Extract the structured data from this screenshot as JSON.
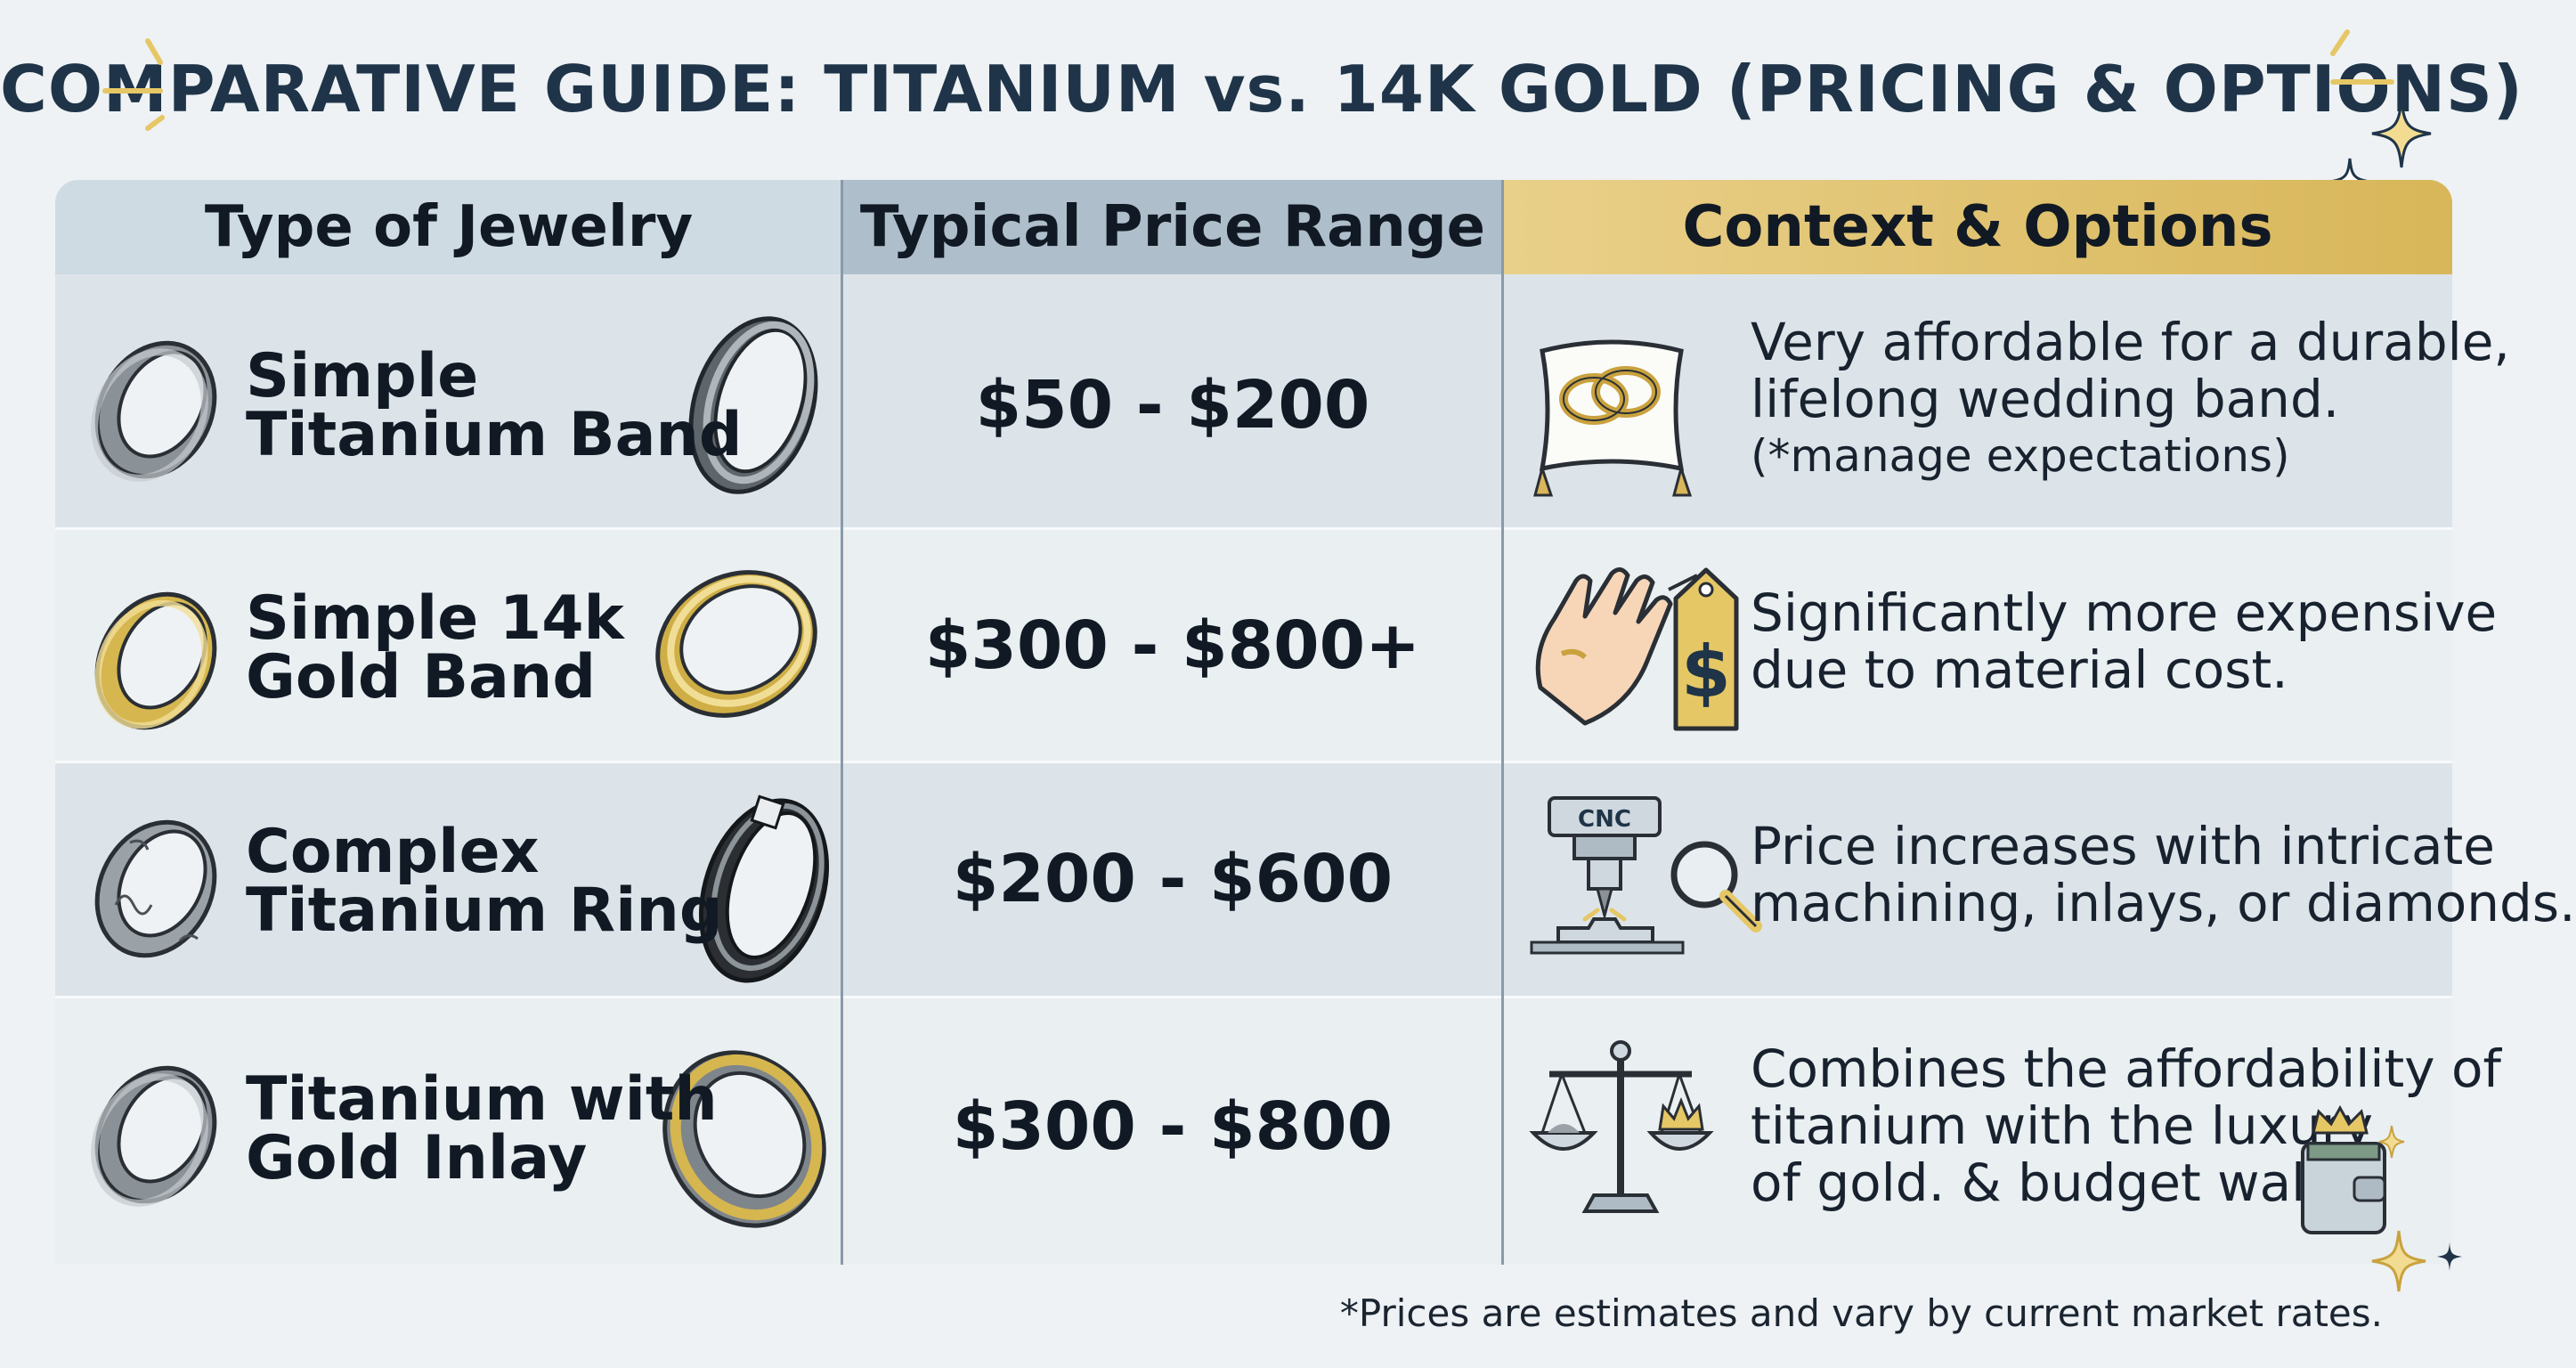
{
  "title": "COMPARATIVE GUIDE: TITANIUM vs. 14K GOLD (PRICING & OPTIONS)",
  "headers": {
    "type": "Type of Jewelry",
    "price": "Typical Price Range",
    "context": "Context & Options"
  },
  "rows": [
    {
      "type_line1": "Simple",
      "type_line2": "Titanium Band",
      "price": "$50 - $200",
      "context_line1": "Very affordable for a durable,",
      "context_line2": "lifelong wedding band.",
      "context_note": "(*manage expectations)",
      "icon": "pillow-rings-icon"
    },
    {
      "type_line1": "Simple 14k",
      "type_line2": "Gold Band",
      "price": "$300 - $800+",
      "context_line1": "Significantly more expensive",
      "context_line2": "due to material cost.",
      "icon": "hand-price-tag-icon",
      "icon_text": "$"
    },
    {
      "type_line1": "Complex",
      "type_line2": "Titanium Ring",
      "price": "$200 - $600",
      "context_line1": "Price increases with intricate",
      "context_line2": "machining, inlays, or diamonds.",
      "icon": "cnc-machine-icon",
      "icon_text": "CNC"
    },
    {
      "type_line1": "Titanium with",
      "type_line2": "Gold Inlay",
      "price": "$300 - $800",
      "context_line1": "Combines the affordability of",
      "context_line2": "titanium with the luxury",
      "context_line3": "of gold. & budget wallet",
      "icon": "scale-crown-icon"
    }
  ],
  "footnote": "*Prices are estimates and vary by current market rates.",
  "colors": {
    "title": "#1f3448",
    "gold": "#d8b659",
    "titanium": "#8d959c",
    "header_gold": "#e9d08a"
  }
}
